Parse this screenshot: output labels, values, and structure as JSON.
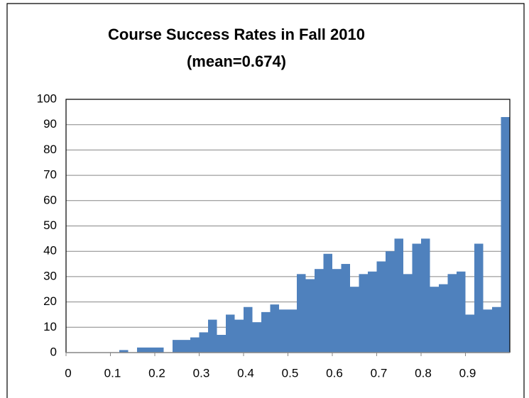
{
  "chart_data": {
    "type": "histogram",
    "title": "Course Success Rates in Fall 2010",
    "subtitle": "(mean=0.674)",
    "bins": [
      0,
      0.02,
      0.04,
      0.06,
      0.08,
      0.1,
      0.12,
      0.14,
      0.16,
      0.18,
      0.2,
      0.22,
      0.24,
      0.26,
      0.28,
      0.3,
      0.32,
      0.34,
      0.36,
      0.38,
      0.4,
      0.42,
      0.44,
      0.46,
      0.48,
      0.5,
      0.52,
      0.54,
      0.56,
      0.58,
      0.6,
      0.62,
      0.64,
      0.66,
      0.68,
      0.7,
      0.72,
      0.74,
      0.76,
      0.78,
      0.8,
      0.82,
      0.84,
      0.86,
      0.88,
      0.9,
      0.92,
      0.94,
      0.96,
      0.98,
      1
    ],
    "values": [
      0,
      0,
      0,
      0,
      0,
      0,
      1,
      0,
      2,
      2,
      2,
      0,
      5,
      5,
      6,
      8,
      13,
      7,
      15,
      13,
      18,
      12,
      16,
      19,
      17,
      17,
      31,
      29,
      33,
      39,
      33,
      35,
      26,
      31,
      32,
      36,
      40,
      45,
      31,
      43,
      45,
      26,
      27,
      31,
      32,
      15,
      43,
      17,
      18,
      93
    ],
    "color": "#4f81bd",
    "xlim": [
      0,
      1
    ],
    "xticks": [
      0,
      0.1,
      0.2,
      0.3,
      0.4,
      0.5,
      0.6,
      0.7,
      0.8,
      0.9
    ],
    "ylim": [
      0,
      100
    ],
    "yticks": [
      0,
      10,
      20,
      30,
      40,
      50,
      60,
      70,
      80,
      90,
      100
    ],
    "grid": true
  }
}
